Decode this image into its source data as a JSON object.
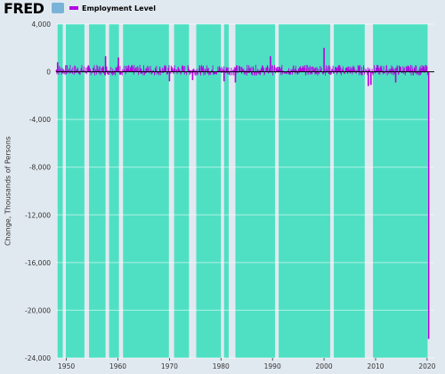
{
  "header": {
    "logo_text": "FRED",
    "legend_label": "Employment Level"
  },
  "colors": {
    "background": "#e1e9f0",
    "recession_shading": "#4fe0c3",
    "series_line": "#b400e0",
    "gridline": "#ffffff",
    "zero_line": "#000000"
  },
  "chart_data": {
    "type": "bar",
    "title": "",
    "ylabel": "Change, Thousands of Persons",
    "xlabel": "",
    "x_range": [
      1948,
      2021.4
    ],
    "ylim": [
      -24000,
      4000
    ],
    "y_ticks": [
      "4,000",
      "0",
      "-4,000",
      "-8,000",
      "-12,000",
      "-16,000",
      "-20,000",
      "-24,000"
    ],
    "y_tick_values": [
      4000,
      0,
      -4000,
      -8000,
      -12000,
      -16000,
      -20000,
      -24000
    ],
    "x_ticks": [
      "1950",
      "1960",
      "1970",
      "1980",
      "1990",
      "2000",
      "2010",
      "2020"
    ],
    "x_tick_values": [
      1950,
      1960,
      1970,
      1980,
      1990,
      2000,
      2010,
      2020
    ],
    "grid": true,
    "shaded_periods": [
      [
        1948.3,
        1949.3
      ],
      [
        1949.9,
        1953.5
      ],
      [
        1954.4,
        1957.6
      ],
      [
        1958.3,
        1960.2
      ],
      [
        1961.0,
        1969.9
      ],
      [
        1970.9,
        1973.8
      ],
      [
        1975.2,
        1980.0
      ],
      [
        1980.6,
        1981.5
      ],
      [
        1982.8,
        1990.5
      ],
      [
        1991.2,
        2001.2
      ],
      [
        2001.9,
        2007.9
      ],
      [
        2009.5,
        2020.1
      ]
    ],
    "series": [
      {
        "name": "Employment Level",
        "values": [
          {
            "x": 1948.3,
            "y": 800
          },
          {
            "x": 1957.6,
            "y": 1300
          },
          {
            "x": 1960.1,
            "y": 1200
          },
          {
            "x": 1970.0,
            "y": -800
          },
          {
            "x": 1974.5,
            "y": -700
          },
          {
            "x": 1980.6,
            "y": -800
          },
          {
            "x": 1982.8,
            "y": -900
          },
          {
            "x": 1989.6,
            "y": 1300
          },
          {
            "x": 2000.0,
            "y": 2000
          },
          {
            "x": 2008.6,
            "y": -1200
          },
          {
            "x": 2009.1,
            "y": -1100
          },
          {
            "x": 2013.9,
            "y": -900
          },
          {
            "x": 2020.3,
            "y": -22400
          }
        ]
      }
    ]
  }
}
